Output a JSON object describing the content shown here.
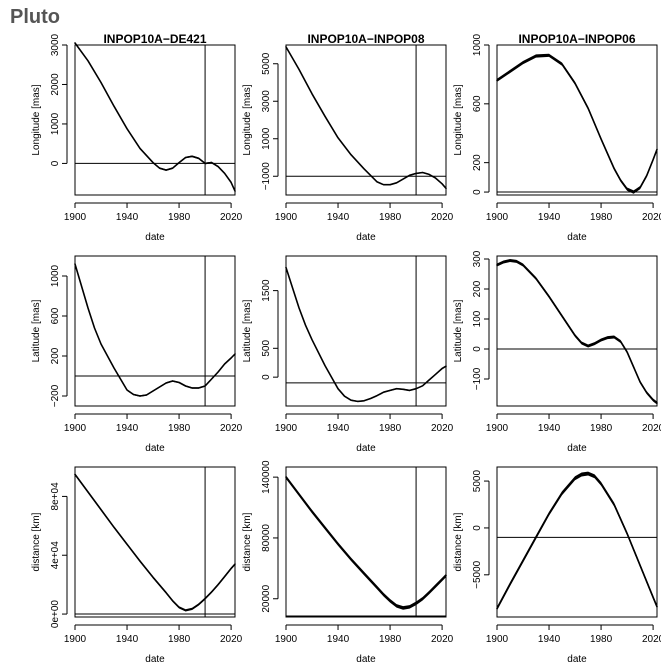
{
  "page": {
    "title": "Pluto"
  },
  "chart_data": [
    {
      "type": "line",
      "title": "INPOP10A−DE421",
      "xlabel": "date",
      "ylabel": "Longitude [mas]",
      "xlim": [
        1900,
        2023
      ],
      "ylim": [
        -800,
        3000
      ],
      "xticks": [
        1900,
        1940,
        1980,
        2020
      ],
      "yticks": [
        0,
        1000,
        2000,
        3000
      ],
      "ytick_labels": [
        "0",
        "1000",
        "2000",
        "3000"
      ],
      "hline": 0,
      "vline": 2000,
      "band_width": 40,
      "x": [
        1900,
        1910,
        1920,
        1930,
        1940,
        1950,
        1960,
        1965,
        1970,
        1975,
        1980,
        1985,
        1990,
        1995,
        2000,
        2005,
        2010,
        2015,
        2020,
        2023
      ],
      "y": [
        3050,
        2600,
        2050,
        1450,
        880,
        380,
        20,
        -120,
        -170,
        -120,
        20,
        150,
        180,
        130,
        0,
        20,
        -80,
        -250,
        -480,
        -700
      ]
    },
    {
      "type": "line",
      "title": "INPOP10A−INPOP08",
      "xlabel": "date",
      "ylabel": "Longitude [mas]",
      "xlim": [
        1900,
        2023
      ],
      "ylim": [
        -2000,
        6000
      ],
      "xticks": [
        1900,
        1940,
        1980,
        2020
      ],
      "yticks": [
        -1000,
        1000,
        3000,
        5000
      ],
      "ytick_labels": [
        "−1000",
        "1000",
        "3000",
        "5000"
      ],
      "hline": -1000,
      "vline": 2000,
      "band_width": 60,
      "x": [
        1900,
        1910,
        1920,
        1930,
        1940,
        1950,
        1960,
        1970,
        1975,
        1980,
        1985,
        1990,
        1995,
        2000,
        2005,
        2010,
        2015,
        2020,
        2023
      ],
      "y": [
        5900,
        4700,
        3400,
        2200,
        1050,
        150,
        -600,
        -1300,
        -1450,
        -1450,
        -1350,
        -1150,
        -950,
        -850,
        -800,
        -900,
        -1100,
        -1400,
        -1650
      ]
    },
    {
      "type": "line",
      "title": "INPOP10A−INPOP06",
      "xlabel": "date",
      "ylabel": "Longitude [mas]",
      "xlim": [
        1900,
        2023
      ],
      "ylim": [
        -20,
        1000
      ],
      "xticks": [
        1900,
        1940,
        1980,
        2020
      ],
      "yticks": [
        0,
        200,
        600,
        1000
      ],
      "ytick_labels": [
        "0",
        "200",
        "600",
        "1000"
      ],
      "hline": 0,
      "vline": null,
      "band_width": 22,
      "x": [
        1900,
        1910,
        1920,
        1930,
        1940,
        1950,
        1960,
        1970,
        1980,
        1990,
        1995,
        2000,
        2005,
        2010,
        2015,
        2020,
        2023
      ],
      "y": [
        760,
        820,
        880,
        925,
        930,
        870,
        740,
        570,
        360,
        160,
        80,
        20,
        0,
        30,
        110,
        220,
        290
      ]
    },
    {
      "type": "line",
      "title": "",
      "xlabel": "date",
      "ylabel": "Latitude [mas]",
      "xlim": [
        1900,
        2023
      ],
      "ylim": [
        -300,
        1200
      ],
      "xticks": [
        1900,
        1940,
        1980,
        2020
      ],
      "yticks": [
        -200,
        200,
        600,
        1000
      ],
      "ytick_labels": [
        "−200",
        "200",
        "600",
        "1000"
      ],
      "hline": 0,
      "vline": 2000,
      "band_width": 16,
      "x": [
        1900,
        1905,
        1910,
        1915,
        1920,
        1930,
        1940,
        1945,
        1950,
        1955,
        1960,
        1970,
        1975,
        1980,
        1985,
        1990,
        1995,
        2000,
        2005,
        2010,
        2015,
        2020,
        2023
      ],
      "y": [
        1120,
        900,
        680,
        480,
        320,
        80,
        -140,
        -185,
        -200,
        -190,
        -150,
        -70,
        -50,
        -65,
        -100,
        -120,
        -120,
        -100,
        -30,
        40,
        120,
        180,
        220
      ]
    },
    {
      "type": "line",
      "title": "",
      "xlabel": "date",
      "ylabel": "Latitude [mas]",
      "xlim": [
        1900,
        2023
      ],
      "ylim": [
        -500,
        2100
      ],
      "xticks": [
        1900,
        1940,
        1980,
        2020
      ],
      "yticks": [
        0,
        500,
        1500
      ],
      "ytick_labels": [
        "0",
        "500",
        "1500"
      ],
      "hline": -100,
      "vline": 2000,
      "band_width": 22,
      "x": [
        1900,
        1905,
        1910,
        1915,
        1920,
        1930,
        1940,
        1945,
        1950,
        1955,
        1960,
        1965,
        1970,
        1975,
        1980,
        1985,
        1990,
        1995,
        2000,
        2005,
        2010,
        2015,
        2020,
        2023
      ],
      "y": [
        1900,
        1550,
        1200,
        900,
        650,
        200,
        -200,
        -330,
        -400,
        -420,
        -410,
        -370,
        -320,
        -260,
        -230,
        -200,
        -210,
        -230,
        -200,
        -150,
        -50,
        50,
        150,
        190
      ]
    },
    {
      "type": "line",
      "title": "",
      "xlabel": "date",
      "ylabel": "Latitude [mas]",
      "xlim": [
        1900,
        2023
      ],
      "ylim": [
        -190,
        310
      ],
      "xticks": [
        1900,
        1940,
        1980,
        2020
      ],
      "yticks": [
        -100,
        0,
        100,
        200,
        300
      ],
      "ytick_labels": [
        "−100",
        "0",
        "100",
        "200",
        "300"
      ],
      "hline": 0,
      "vline": null,
      "band_width": 10,
      "x": [
        1900,
        1905,
        1910,
        1915,
        1920,
        1930,
        1940,
        1950,
        1960,
        1965,
        1970,
        1975,
        1980,
        1985,
        1990,
        1995,
        2000,
        2005,
        2010,
        2015,
        2020,
        2023
      ],
      "y": [
        280,
        290,
        295,
        292,
        280,
        235,
        175,
        110,
        45,
        20,
        10,
        18,
        30,
        38,
        40,
        25,
        -10,
        -60,
        -110,
        -145,
        -170,
        -180
      ]
    },
    {
      "type": "line",
      "title": "",
      "xlabel": "date",
      "ylabel": "distance [km]",
      "xlim": [
        1900,
        2023
      ],
      "ylim": [
        -2000,
        100000
      ],
      "xticks": [
        1900,
        1940,
        1980,
        2020
      ],
      "yticks": [
        0,
        40000,
        80000
      ],
      "ytick_labels": [
        "0e+00",
        "4e+04",
        "8e+04"
      ],
      "hline": 0,
      "vline": 2000,
      "band_width": 1500,
      "x": [
        1900,
        1910,
        1920,
        1930,
        1940,
        1950,
        1960,
        1970,
        1975,
        1980,
        1985,
        1990,
        1995,
        2000,
        2005,
        2010,
        2015,
        2020,
        2023
      ],
      "y": [
        95000,
        83000,
        71000,
        59000,
        47500,
        36000,
        25000,
        14500,
        9000,
        4500,
        2500,
        3500,
        6500,
        10500,
        15000,
        20000,
        25500,
        31000,
        34000
      ]
    },
    {
      "type": "line",
      "title": "",
      "xlabel": "date",
      "ylabel": "distance [km]",
      "xlim": [
        1900,
        2023
      ],
      "ylim": [
        2000,
        150000
      ],
      "xticks": [
        1900,
        1940,
        1980,
        2020
      ],
      "yticks": [
        20000,
        80000,
        140000
      ],
      "ytick_labels": [
        "20000",
        "80000",
        "140000"
      ],
      "hline": 3000,
      "vline": 2000,
      "band_width": 3500,
      "x": [
        1900,
        1910,
        1920,
        1930,
        1940,
        1950,
        1960,
        1970,
        1975,
        1980,
        1985,
        1990,
        1995,
        2000,
        2005,
        2010,
        2015,
        2020,
        2023
      ],
      "y": [
        140000,
        123000,
        106000,
        90000,
        74000,
        59000,
        45000,
        31000,
        24000,
        18000,
        13000,
        11000,
        12000,
        15500,
        20000,
        26000,
        32500,
        39000,
        43000
      ]
    },
    {
      "type": "line",
      "title": "",
      "xlabel": "date",
      "ylabel": "distance [km]",
      "xlim": [
        1900,
        2023
      ],
      "ylim": [
        -9500,
        6500
      ],
      "xticks": [
        1900,
        1940,
        1980,
        2020
      ],
      "yticks": [
        -5000,
        0,
        5000
      ],
      "ytick_labels": [
        "−5000",
        "0",
        "5000"
      ],
      "hline": -1000,
      "vline": null,
      "band_width": 420,
      "x": [
        1900,
        1910,
        1920,
        1930,
        1940,
        1950,
        1960,
        1965,
        1970,
        1975,
        1980,
        1990,
        2000,
        2010,
        2020,
        2023
      ],
      "y": [
        -8600,
        -6000,
        -3500,
        -1000,
        1500,
        3700,
        5300,
        5700,
        5800,
        5500,
        4700,
        2500,
        -600,
        -4000,
        -7400,
        -8400
      ]
    }
  ]
}
